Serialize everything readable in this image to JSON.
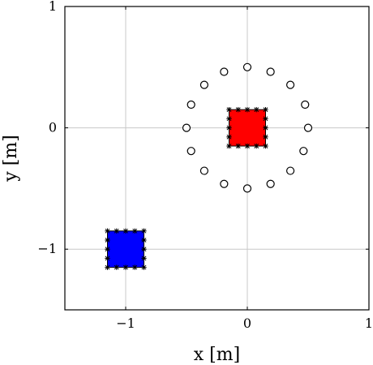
{
  "chart_data": {
    "type": "scatter",
    "title": "",
    "xlabel": "x [m]",
    "ylabel": "y [m]",
    "xlim": [
      -1.5,
      1
    ],
    "ylim": [
      -1.5,
      1
    ],
    "xticks": [
      -1,
      0,
      1
    ],
    "yticks": [
      -1,
      0,
      1
    ],
    "xtick_labels": [
      "−1",
      "0",
      "1"
    ],
    "ytick_labels": [
      "−1",
      "0",
      "1"
    ],
    "grid": true,
    "legend": "none",
    "series": [
      {
        "marker": "open-circle",
        "color": "#000000",
        "points": [
          [
            0.5,
            0.0
          ],
          [
            0.475,
            0.191
          ],
          [
            0.354,
            0.354
          ],
          [
            0.191,
            0.462
          ],
          [
            0.0,
            0.5
          ],
          [
            -0.191,
            0.462
          ],
          [
            -0.354,
            0.354
          ],
          [
            -0.462,
            0.191
          ],
          [
            -0.5,
            0.0
          ],
          [
            -0.462,
            -0.191
          ],
          [
            -0.354,
            -0.354
          ],
          [
            -0.191,
            -0.462
          ],
          [
            0.0,
            -0.5
          ],
          [
            0.191,
            -0.462
          ],
          [
            0.354,
            -0.354
          ],
          [
            0.462,
            -0.191
          ]
        ]
      }
    ],
    "regions": [
      {
        "shape": "square",
        "fill": "#ff0000",
        "center": [
          0.0,
          0.0
        ],
        "half_width": 0.15,
        "boundary_marker": "asterisk",
        "boundary_points_per_side": 5
      },
      {
        "shape": "square",
        "fill": "#0000ff",
        "center": [
          -1.0,
          -1.0
        ],
        "half_width": 0.15,
        "boundary_marker": "asterisk",
        "boundary_points_per_side": 5
      }
    ]
  }
}
